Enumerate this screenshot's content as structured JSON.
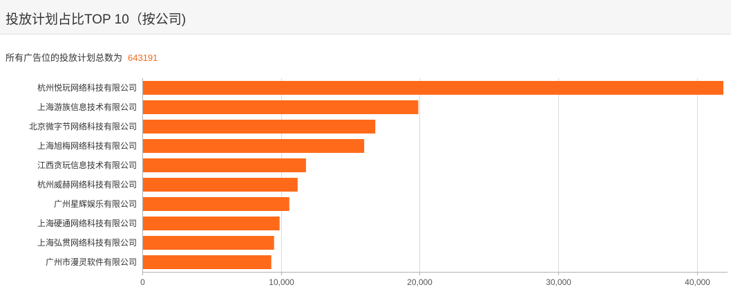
{
  "header": {
    "title": "投放计划占比TOP 10（按公司)"
  },
  "summary": {
    "label": "所有广告位的投放计划总数为",
    "value": "643191"
  },
  "colors": {
    "bar": "#ff6a1a",
    "grid": "#d9d9d9",
    "axis": "#b0b0b0"
  },
  "chart_data": {
    "type": "bar",
    "orientation": "horizontal",
    "categories": [
      "杭州悦玩网络科技有限公司",
      "上海游族信息技术有限公司",
      "北京微字节网络科技有限公司",
      "上海旭梅网络科技有限公司",
      "江西贪玩信息技术有限公司",
      "杭州威赫网络科技有限公司",
      "广州星辉娱乐有限公司",
      "上海硬通网络科技有限公司",
      "上海弘贯网络科技有限公司",
      "广州市漫灵软件有限公司"
    ],
    "values": [
      41900,
      19900,
      16800,
      16000,
      11800,
      11200,
      10600,
      9900,
      9500,
      9300
    ],
    "xlim": [
      0,
      42000
    ],
    "xticks": [
      0,
      10000,
      20000,
      30000,
      40000
    ],
    "xtick_labels": [
      "0",
      "10,000",
      "20,000",
      "30,000",
      "40,000"
    ],
    "grid": true
  }
}
